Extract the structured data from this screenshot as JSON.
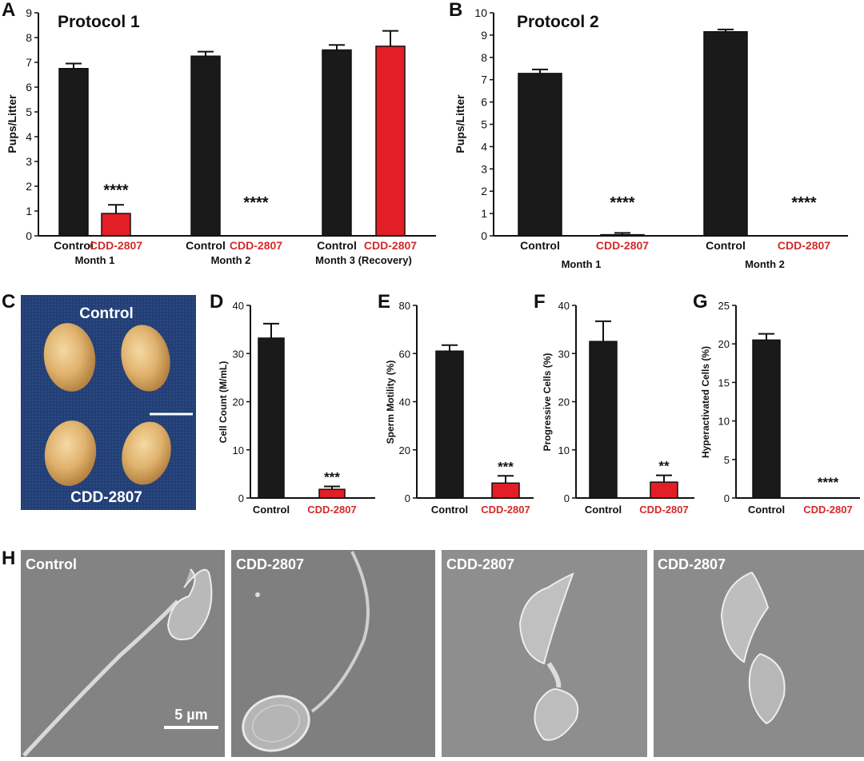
{
  "colors": {
    "control": "#1a1a1a",
    "treated": "#e41e26",
    "treated_label": "#d42a2a",
    "photo_bg": "#1f3a6d",
    "sem_bg": "#8a8a8a"
  },
  "chart_data": [
    {
      "id": "A",
      "type": "bar",
      "title": "Protocol 1",
      "ylabel": "Pups/Litter",
      "ylim": [
        0,
        9
      ],
      "yticks": [
        "0",
        "1",
        "2",
        "3",
        "4",
        "5",
        "6",
        "7",
        "8",
        "9"
      ],
      "groups": [
        {
          "label": "Month 1",
          "bars": [
            {
              "label": "Control",
              "value": 6.75,
              "err": 0.2,
              "kind": "control"
            },
            {
              "label": "CDD-2807",
              "value": 0.9,
              "err": 0.35,
              "kind": "treated"
            }
          ],
          "sig": "****"
        },
        {
          "label": "Month 2",
          "bars": [
            {
              "label": "Control",
              "value": 7.25,
              "err": 0.18,
              "kind": "control"
            },
            {
              "label": "CDD-2807",
              "value": 0,
              "err": 0,
              "kind": "treated"
            }
          ],
          "sig": "****"
        },
        {
          "label": "Month 3 (Recovery)",
          "bars": [
            {
              "label": "Control",
              "value": 7.5,
              "err": 0.2,
              "kind": "control"
            },
            {
              "label": "CDD-2807",
              "value": 7.65,
              "err": 0.62,
              "kind": "treated"
            }
          ],
          "sig": ""
        }
      ]
    },
    {
      "id": "B",
      "type": "bar",
      "title": "Protocol 2",
      "ylabel": "Pups/Litter",
      "ylim": [
        0,
        10
      ],
      "yticks": [
        "0",
        "1",
        "2",
        "3",
        "4",
        "5",
        "6",
        "7",
        "8",
        "9",
        "10"
      ],
      "groups": [
        {
          "label": "Month 1",
          "bars": [
            {
              "label": "Control",
              "value": 7.28,
              "err": 0.18,
              "kind": "control"
            },
            {
              "label": "CDD-2807",
              "value": 0.05,
              "err": 0.08,
              "kind": "treated"
            }
          ],
          "sig": "****"
        },
        {
          "label": "Month 2",
          "bars": [
            {
              "label": "Control",
              "value": 9.15,
              "err": 0.1,
              "kind": "control"
            },
            {
              "label": "CDD-2807",
              "value": 0,
              "err": 0,
              "kind": "treated"
            }
          ],
          "sig": "****"
        }
      ]
    },
    {
      "id": "D",
      "type": "bar",
      "ylabel": "Cell Count (M/mL)",
      "ylim": [
        0,
        40
      ],
      "yticks": [
        "0",
        "10",
        "20",
        "30",
        "40"
      ],
      "bars": [
        {
          "label": "Control",
          "value": 33.2,
          "err": 3.0,
          "kind": "control"
        },
        {
          "label": "CDD-2807",
          "value": 1.8,
          "err": 0.6,
          "kind": "treated"
        }
      ],
      "sig": "***"
    },
    {
      "id": "E",
      "type": "bar",
      "ylabel": "Sperm Motility (%)",
      "ylim": [
        0,
        80
      ],
      "yticks": [
        "0",
        "20",
        "40",
        "60",
        "80"
      ],
      "bars": [
        {
          "label": "Control",
          "value": 61,
          "err": 2.5,
          "kind": "control"
        },
        {
          "label": "CDD-2807",
          "value": 6.2,
          "err": 3.0,
          "kind": "treated"
        }
      ],
      "sig": "***"
    },
    {
      "id": "F",
      "type": "bar",
      "ylabel": "Progressive Cells (%)",
      "ylim": [
        0,
        40
      ],
      "yticks": [
        "0",
        "10",
        "20",
        "30",
        "40"
      ],
      "bars": [
        {
          "label": "Control",
          "value": 32.5,
          "err": 4.2,
          "kind": "control"
        },
        {
          "label": "CDD-2807",
          "value": 3.3,
          "err": 1.4,
          "kind": "treated"
        }
      ],
      "sig": "**"
    },
    {
      "id": "G",
      "type": "bar",
      "ylabel": "Hyperactivated Cells (%)",
      "ylim": [
        0,
        25
      ],
      "yticks": [
        "0",
        "5",
        "10",
        "15",
        "20",
        "25"
      ],
      "bars": [
        {
          "label": "Control",
          "value": 20.5,
          "err": 0.8,
          "kind": "control"
        },
        {
          "label": "CDD-2807",
          "value": 0,
          "err": 0,
          "kind": "treated"
        }
      ],
      "sig": "****"
    }
  ],
  "panel_c": {
    "letter": "C",
    "top_label": "Control",
    "bottom_label": "CDD-2807"
  },
  "panel_h": {
    "letter": "H",
    "labels": [
      "Control",
      "CDD-2807",
      "CDD-2807",
      "CDD-2807"
    ],
    "scale_bar": "5 µm"
  }
}
